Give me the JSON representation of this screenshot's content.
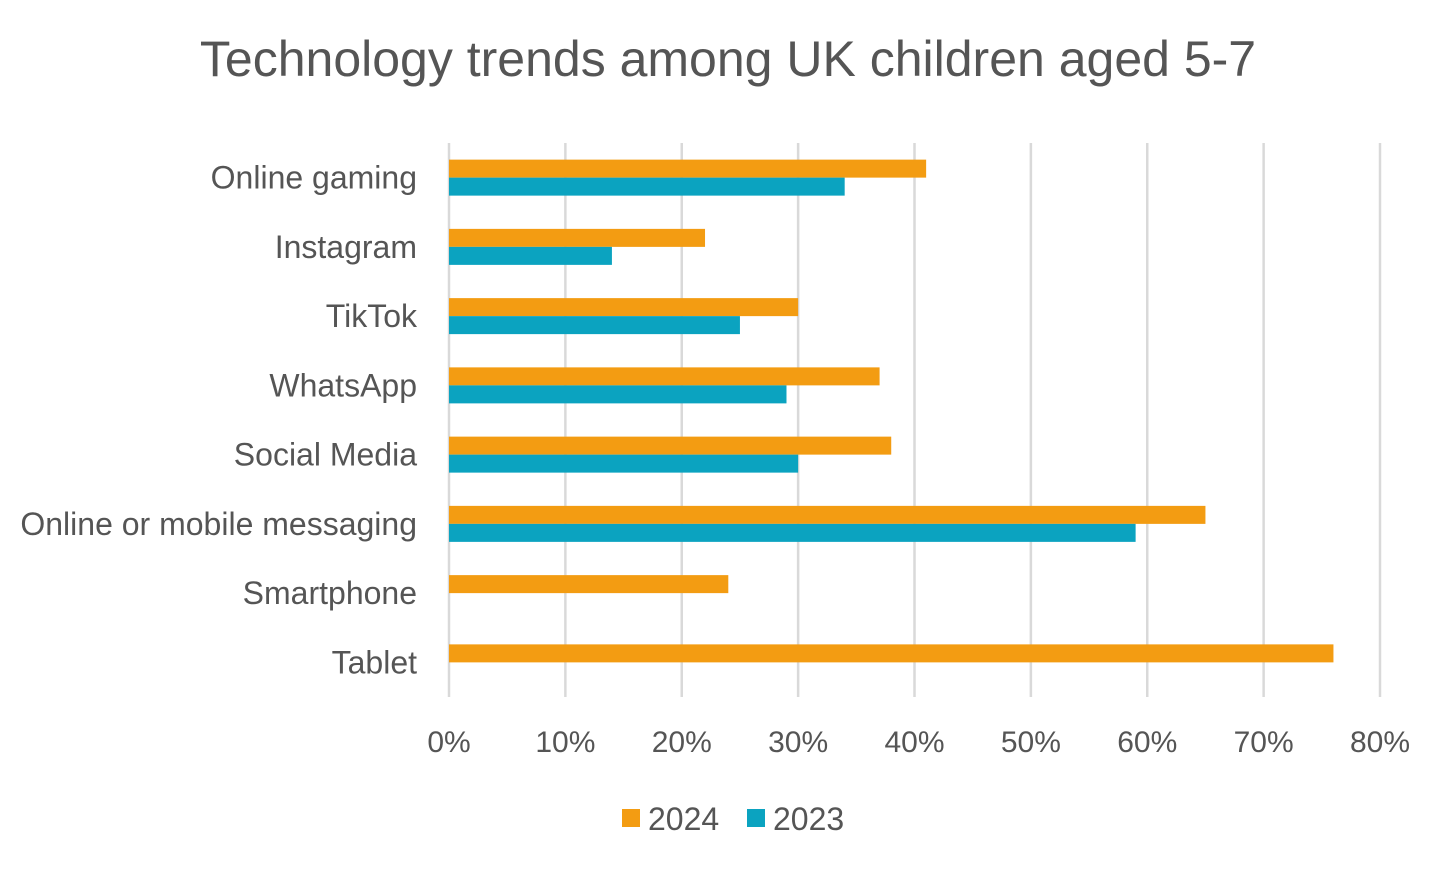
{
  "chart_data": {
    "type": "bar",
    "orientation": "horizontal",
    "title": "Technology trends among UK children aged 5-7",
    "categories": [
      "Online gaming",
      "Instagram",
      "TikTok",
      "WhatsApp",
      "Social Media",
      "Online or mobile messaging",
      "Smartphone",
      "Tablet"
    ],
    "series": [
      {
        "name": "2024",
        "color": "#F39C12",
        "values": [
          41,
          22,
          30,
          37,
          38,
          65,
          24,
          76
        ]
      },
      {
        "name": "2023",
        "color": "#0BA3C0",
        "values": [
          34,
          14,
          25,
          29,
          30,
          59,
          null,
          null
        ]
      }
    ],
    "xlim": [
      0,
      80
    ],
    "x_ticks": [
      "0%",
      "10%",
      "20%",
      "30%",
      "40%",
      "50%",
      "60%",
      "70%",
      "80%"
    ],
    "grid": "vertical",
    "legend": "bottom-center",
    "xlabel": "",
    "ylabel": ""
  }
}
